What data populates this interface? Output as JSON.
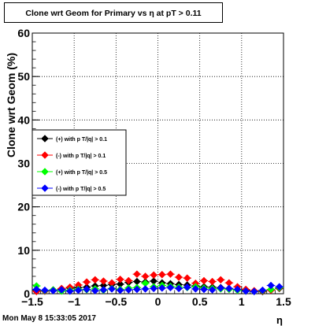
{
  "title": "Clone wrt Geom for Primary vs  η at pT > 0.11",
  "footer": "Mon May  8 15:33:05 2017",
  "chart_data": {
    "type": "scatter",
    "title": "Clone wrt Geom for Primary vs  η at pT > 0.11",
    "xlabel": "η",
    "ylabel": "Clone wrt Geom (%)",
    "xlim": [
      -1.5,
      1.5
    ],
    "ylim": [
      0,
      60
    ],
    "xticks": [
      -1.5,
      -1,
      -0.5,
      0,
      0.5,
      1,
      1.5
    ],
    "xtick_labels": [
      "−1.5",
      "−1",
      "−0.5",
      "0",
      "0.5",
      "1",
      "1.5"
    ],
    "yticks": [
      0,
      10,
      20,
      30,
      40,
      50,
      60
    ],
    "ytick_labels": [
      "0",
      "10",
      "20",
      "30",
      "40",
      "50",
      "60"
    ],
    "grid": true,
    "legend_position": "left-middle",
    "series": [
      {
        "name": "(+) with p T/|q| > 0.1",
        "color": "#000000",
        "x": [
          -1.45,
          -1.35,
          -1.25,
          -1.15,
          -1.05,
          -0.95,
          -0.85,
          -0.75,
          -0.65,
          -0.55,
          -0.45,
          -0.35,
          -0.25,
          -0.15,
          -0.05,
          0.05,
          0.15,
          0.25,
          0.35,
          0.45,
          0.55,
          0.65,
          0.75,
          0.85,
          0.95,
          1.05,
          1.15,
          1.25,
          1.35,
          1.45
        ],
        "y": [
          0.8,
          0.6,
          0.8,
          1.0,
          1.3,
          1.4,
          1.5,
          1.8,
          1.9,
          2.1,
          2.2,
          2.6,
          2.8,
          2.7,
          2.9,
          2.5,
          2.3,
          2.1,
          2.0,
          1.8,
          1.6,
          1.5,
          1.4,
          1.2,
          1.0,
          0.8,
          0.6,
          0.5,
          0.9,
          1.2
        ]
      },
      {
        "name": "(-) with p T/|q| > 0.1",
        "color": "#ff0000",
        "x": [
          -1.45,
          -1.35,
          -1.25,
          -1.15,
          -1.05,
          -0.95,
          -0.85,
          -0.75,
          -0.65,
          -0.55,
          -0.45,
          -0.35,
          -0.25,
          -0.15,
          -0.05,
          0.05,
          0.15,
          0.25,
          0.35,
          0.45,
          0.55,
          0.65,
          0.75,
          0.85,
          0.95,
          1.05,
          1.15,
          1.25,
          1.35,
          1.45
        ],
        "y": [
          0.5,
          0.6,
          0.9,
          1.2,
          1.5,
          2.0,
          2.7,
          3.2,
          2.9,
          2.5,
          3.3,
          3.0,
          4.5,
          4.0,
          4.3,
          4.4,
          4.5,
          3.8,
          3.6,
          2.4,
          3.0,
          2.8,
          3.2,
          2.5,
          1.6,
          1.0,
          0.7,
          0.6,
          0.8,
          1.3
        ]
      },
      {
        "name": "(+) with p T/|q| > 0.5",
        "color": "#00ff00",
        "x": [
          -1.45,
          -1.35,
          -1.25,
          -1.15,
          -1.05,
          -0.95,
          -0.85,
          -0.75,
          -0.65,
          -0.55,
          -0.45,
          -0.35,
          -0.25,
          -0.15,
          -0.05,
          0.05,
          0.15,
          0.25,
          0.35,
          0.45,
          0.55,
          0.65,
          0.75,
          0.85,
          0.95,
          1.05,
          1.15,
          1.25,
          1.35,
          1.45
        ],
        "y": [
          1.8,
          0.7,
          0.9,
          0.6,
          0.8,
          1.0,
          0.9,
          1.1,
          0.8,
          1.2,
          1.0,
          1.3,
          1.4,
          2.4,
          1.6,
          1.9,
          1.7,
          1.5,
          1.4,
          1.6,
          1.3,
          1.2,
          1.1,
          1.0,
          0.8,
          0.6,
          0.5,
          0.7,
          1.0,
          1.4
        ]
      },
      {
        "name": "(-) with p T/|q| > 0.5",
        "color": "#0000ff",
        "x": [
          -1.45,
          -1.35,
          -1.25,
          -1.15,
          -1.05,
          -0.95,
          -0.85,
          -0.75,
          -0.65,
          -0.55,
          -0.45,
          -0.35,
          -0.25,
          -0.15,
          -0.05,
          0.05,
          0.15,
          0.25,
          0.35,
          0.45,
          0.55,
          0.65,
          0.75,
          0.85,
          0.95,
          1.05,
          1.15,
          1.25,
          1.35,
          1.45
        ],
        "y": [
          1.0,
          0.8,
          0.7,
          0.9,
          0.6,
          0.8,
          1.0,
          0.7,
          0.9,
          1.1,
          0.8,
          0.9,
          1.0,
          1.1,
          1.2,
          1.3,
          1.4,
          1.2,
          1.5,
          1.1,
          1.0,
          0.9,
          1.3,
          1.2,
          1.0,
          0.6,
          0.5,
          0.8,
          1.9,
          1.6
        ]
      }
    ]
  }
}
